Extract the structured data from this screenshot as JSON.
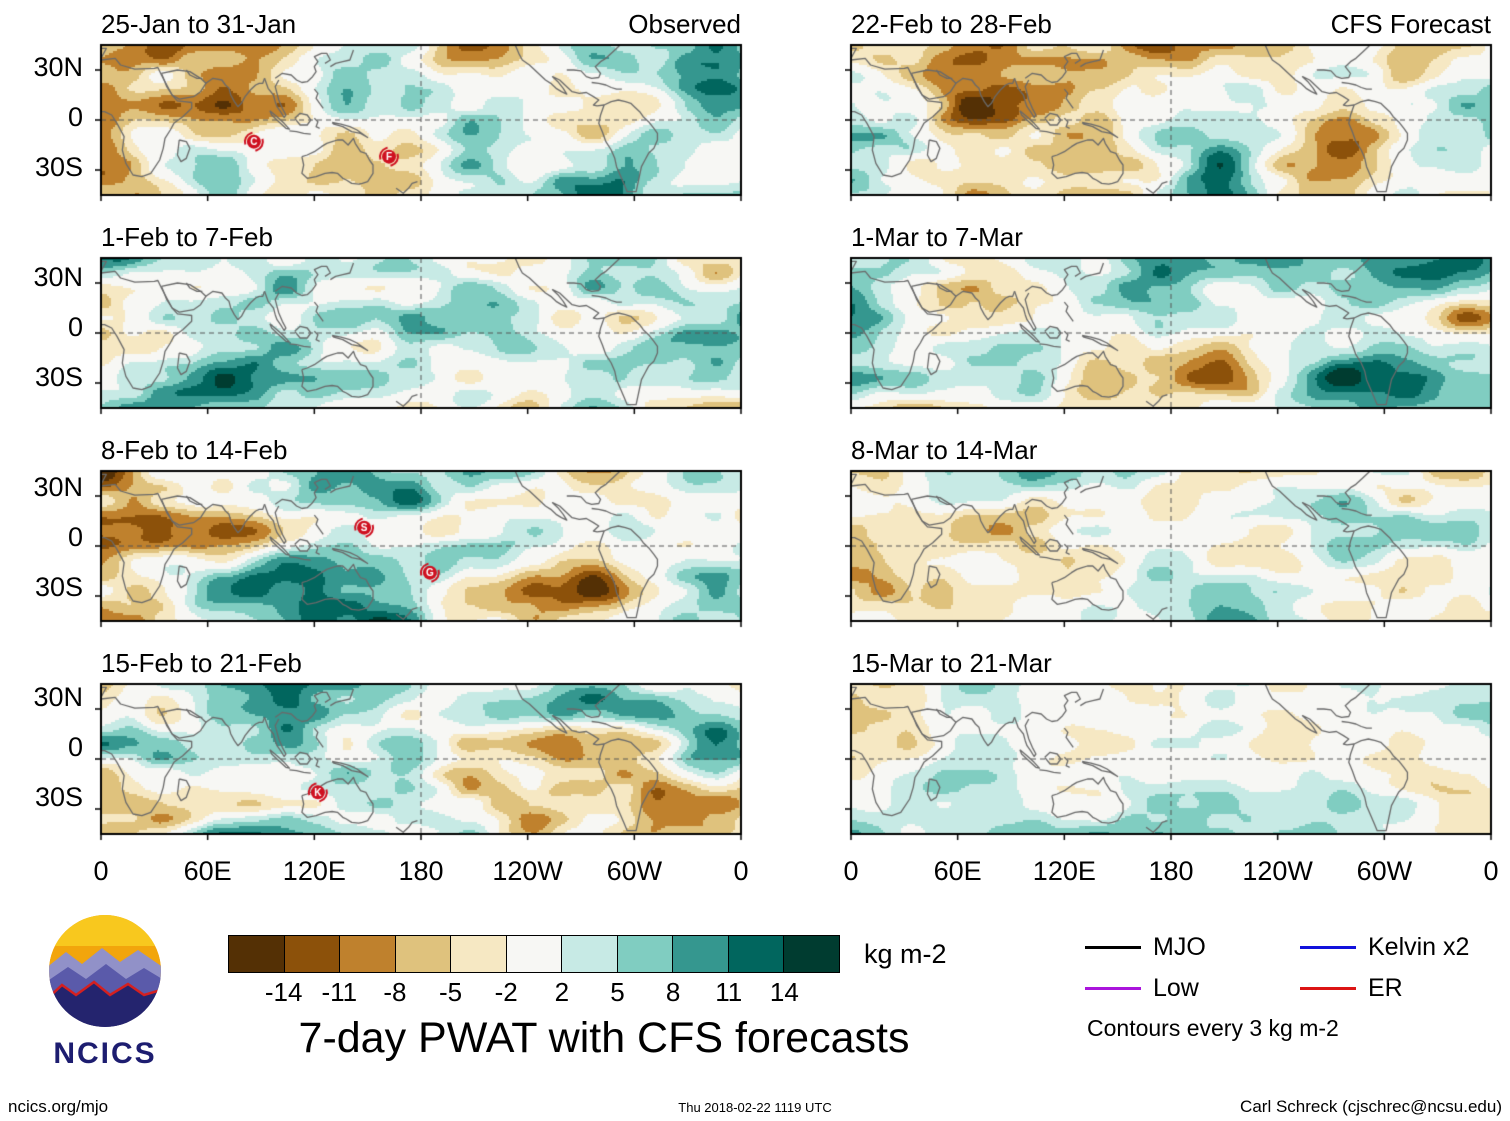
{
  "logo": {
    "text": "NCICS"
  },
  "footer": {
    "left": "ncics.org/mjo",
    "center": "Thu 2018-02-22 1119 UTC",
    "right": "Carl Schreck (cjschrec@ncsu.edu)"
  },
  "chart_data": {
    "type": "heatmap",
    "title": "7-day PWAT with CFS forecasts",
    "units": "kg m-2",
    "columns": [
      "Observed",
      "CFS Forecast"
    ],
    "panels": [
      {
        "column": "Observed",
        "period": "25-Jan to 31-Jan",
        "tropical_cyclones": [
          {
            "label": "C",
            "lon_e": 86,
            "lat": -13
          },
          {
            "label": "F",
            "lon_e": 162,
            "lat": -22
          }
        ]
      },
      {
        "column": "Observed",
        "period": "1-Feb to 7-Feb",
        "tropical_cyclones": []
      },
      {
        "column": "Observed",
        "period": "8-Feb to 14-Feb",
        "tropical_cyclones": [
          {
            "label": "S",
            "lon_e": 148,
            "lat": 11
          },
          {
            "label": "G",
            "lon_e": 185,
            "lat": -16
          }
        ]
      },
      {
        "column": "Observed",
        "period": "15-Feb to 21-Feb",
        "tropical_cyclones": [
          {
            "label": "K",
            "lon_e": 122,
            "lat": -20
          }
        ]
      },
      {
        "column": "CFS Forecast",
        "period": "22-Feb to 28-Feb",
        "tropical_cyclones": []
      },
      {
        "column": "CFS Forecast",
        "period": "1-Mar to 7-Mar",
        "tropical_cyclones": []
      },
      {
        "column": "CFS Forecast",
        "period": "8-Mar to 14-Mar",
        "tropical_cyclones": []
      },
      {
        "column": "CFS Forecast",
        "period": "15-Mar to 21-Mar",
        "tropical_cyclones": []
      }
    ],
    "x_axis": {
      "ticks": [
        "0",
        "60E",
        "120E",
        "180",
        "120W",
        "60W",
        "0"
      ],
      "range_deg_east": [
        0,
        360
      ]
    },
    "y_axis": {
      "ticks": [
        "30N",
        "0",
        "30S"
      ],
      "range_deg_lat": [
        -45,
        45
      ]
    },
    "colorbar": {
      "tick_values": [
        -14,
        -11,
        -8,
        -5,
        -2,
        2,
        5,
        8,
        11,
        14
      ],
      "tick_labels": [
        "-14",
        "-11",
        "-8",
        "-5",
        "-2",
        "2",
        "5",
        "8",
        "11",
        "14"
      ],
      "colors": [
        "#543005",
        "#8c510a",
        "#bf812d",
        "#dfc27d",
        "#f6e8c3",
        "#f7f7f4",
        "#c7eae5",
        "#80cdc1",
        "#35978f",
        "#01665e",
        "#003c30"
      ],
      "units": "kg m-2"
    },
    "legend": [
      {
        "label": "MJO",
        "color": "#000000"
      },
      {
        "label": "Kelvin x2",
        "color": "#1212dc"
      },
      {
        "label": "Low",
        "color": "#aa14dc"
      },
      {
        "label": "ER",
        "color": "#dc1414"
      }
    ],
    "contour_note": "Contours every 3 kg m-2",
    "grid": {
      "equator_dashed": true,
      "dateline_dashed": true
    }
  }
}
